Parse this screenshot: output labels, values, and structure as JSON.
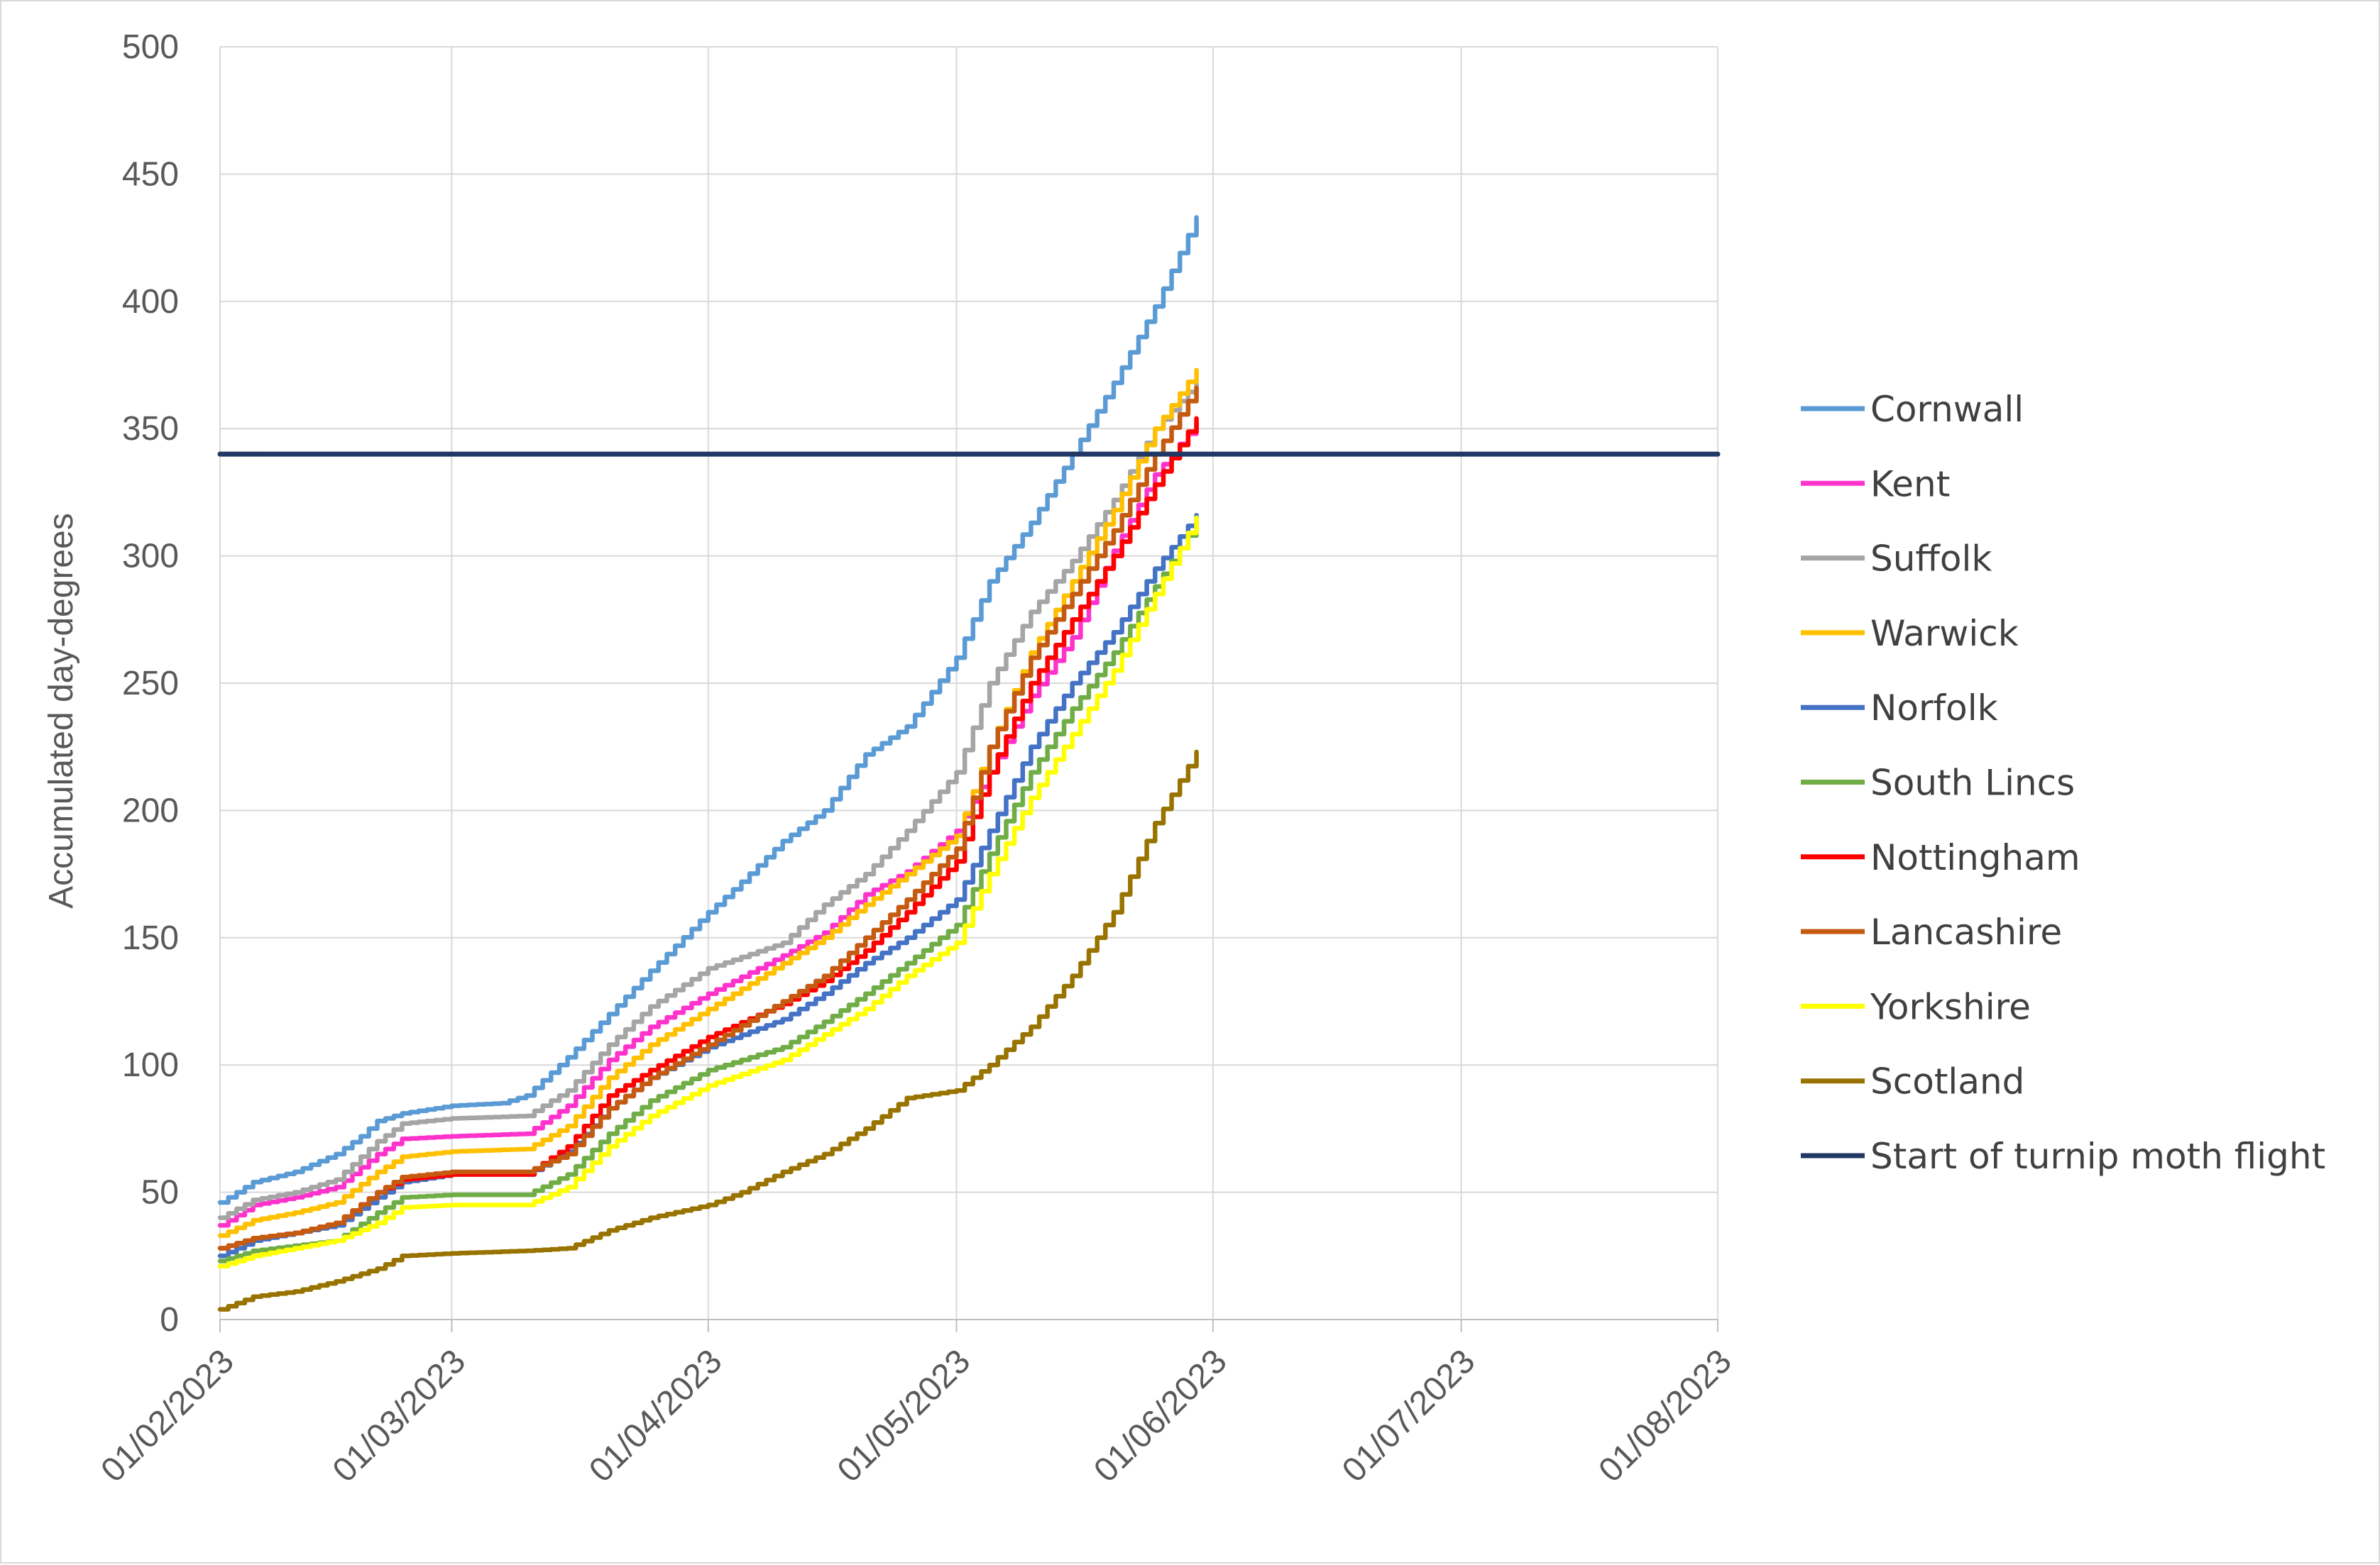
{
  "chart_data": {
    "type": "line",
    "title": "",
    "xlabel": "",
    "ylabel": "Accumulated day-degrees",
    "ylim": [
      0,
      500
    ],
    "yticks": [
      0,
      50,
      100,
      150,
      200,
      250,
      300,
      350,
      400,
      450,
      500
    ],
    "xlim": [
      "2023-02-01",
      "2023-08-01"
    ],
    "xticks": [
      "2023-02-01",
      "2023-03-01",
      "2023-04-01",
      "2023-05-01",
      "2023-06-01",
      "2023-07-01",
      "2023-08-01"
    ],
    "xtick_labels": [
      "01/02/2023",
      "01/03/2023",
      "01/04/2023",
      "01/05/2023",
      "01/06/2023",
      "01/07/2023",
      "01/08/2023"
    ],
    "grid": "vertical and horizontal",
    "legend_position": "right",
    "series": [
      {
        "name": "Cornwall",
        "color": "#5b9bd5",
        "x": [
          "2023-02-01",
          "2023-02-05",
          "2023-02-10",
          "2023-02-15",
          "2023-02-18",
          "2023-02-20",
          "2023-02-23",
          "2023-03-01",
          "2023-03-07",
          "2023-03-10",
          "2023-03-15",
          "2023-03-20",
          "2023-03-25",
          "2023-04-01",
          "2023-04-05",
          "2023-04-10",
          "2023-04-15",
          "2023-04-20",
          "2023-04-25",
          "2023-05-01",
          "2023-05-05",
          "2023-05-10",
          "2023-05-15",
          "2023-05-20",
          "2023-05-25",
          "2023-05-30"
        ],
        "y": [
          46,
          54,
          58,
          65,
          72,
          78,
          81,
          84,
          85,
          88,
          103,
          120,
          137,
          160,
          172,
          188,
          200,
          222,
          233,
          260,
          290,
          313,
          340,
          368,
          398,
          433
        ]
      },
      {
        "name": "Kent",
        "color": "#ff33cc",
        "x": [
          "2023-02-01",
          "2023-02-05",
          "2023-02-10",
          "2023-02-15",
          "2023-02-20",
          "2023-02-23",
          "2023-03-01",
          "2023-03-10",
          "2023-03-15",
          "2023-03-20",
          "2023-03-25",
          "2023-04-01",
          "2023-04-10",
          "2023-04-15",
          "2023-04-20",
          "2023-04-25",
          "2023-05-01",
          "2023-05-05",
          "2023-05-10",
          "2023-05-15",
          "2023-05-20",
          "2023-05-25",
          "2023-05-30"
        ],
        "y": [
          37,
          45,
          48,
          52,
          65,
          71,
          72,
          73,
          84,
          102,
          115,
          128,
          143,
          152,
          167,
          176,
          192,
          215,
          245,
          268,
          302,
          332,
          352
        ]
      },
      {
        "name": "Suffolk",
        "color": "#a5a5a5",
        "x": [
          "2023-02-01",
          "2023-02-05",
          "2023-02-10",
          "2023-02-15",
          "2023-02-20",
          "2023-02-23",
          "2023-03-01",
          "2023-03-10",
          "2023-03-15",
          "2023-03-20",
          "2023-03-25",
          "2023-04-01",
          "2023-04-10",
          "2023-04-15",
          "2023-04-20",
          "2023-04-25",
          "2023-05-01",
          "2023-05-05",
          "2023-05-10",
          "2023-05-15",
          "2023-05-20",
          "2023-05-25",
          "2023-05-30"
        ],
        "y": [
          40,
          47,
          50,
          55,
          70,
          77,
          79,
          80,
          90,
          108,
          123,
          138,
          148,
          163,
          175,
          192,
          215,
          250,
          278,
          298,
          322,
          350,
          368
        ]
      },
      {
        "name": "Warwick",
        "color": "#ffc000",
        "x": [
          "2023-02-01",
          "2023-02-05",
          "2023-02-10",
          "2023-02-15",
          "2023-02-20",
          "2023-02-23",
          "2023-03-01",
          "2023-03-10",
          "2023-03-15",
          "2023-03-20",
          "2023-03-25",
          "2023-04-01",
          "2023-04-10",
          "2023-04-15",
          "2023-04-20",
          "2023-04-25",
          "2023-05-01",
          "2023-05-05",
          "2023-05-10",
          "2023-05-15",
          "2023-05-20",
          "2023-05-25",
          "2023-05-30"
        ],
        "y": [
          33,
          39,
          42,
          46,
          58,
          64,
          66,
          67,
          76,
          95,
          108,
          122,
          140,
          150,
          163,
          175,
          190,
          225,
          262,
          290,
          318,
          350,
          373
        ]
      },
      {
        "name": "Norfolk",
        "color": "#4472c4",
        "x": [
          "2023-02-01",
          "2023-02-05",
          "2023-02-10",
          "2023-02-15",
          "2023-02-20",
          "2023-02-23",
          "2023-03-01",
          "2023-03-10",
          "2023-03-15",
          "2023-03-20",
          "2023-03-25",
          "2023-04-01",
          "2023-04-10",
          "2023-04-15",
          "2023-04-20",
          "2023-04-25",
          "2023-05-01",
          "2023-05-05",
          "2023-05-10",
          "2023-05-15",
          "2023-05-20",
          "2023-05-25",
          "2023-05-30"
        ],
        "y": [
          25,
          31,
          34,
          37,
          48,
          54,
          57,
          57,
          66,
          83,
          95,
          107,
          118,
          128,
          140,
          150,
          165,
          192,
          225,
          250,
          270,
          295,
          316
        ]
      },
      {
        "name": "South Lincs",
        "color": "#70ad47",
        "x": [
          "2023-02-01",
          "2023-02-05",
          "2023-02-10",
          "2023-02-15",
          "2023-02-20",
          "2023-02-23",
          "2023-03-01",
          "2023-03-10",
          "2023-03-15",
          "2023-03-20",
          "2023-03-25",
          "2023-04-01",
          "2023-04-10",
          "2023-04-15",
          "2023-04-20",
          "2023-04-25",
          "2023-05-01",
          "2023-05-05",
          "2023-05-10",
          "2023-05-15",
          "2023-05-20",
          "2023-05-25",
          "2023-05-30"
        ],
        "y": [
          23,
          27,
          29,
          31,
          42,
          48,
          49,
          49,
          57,
          73,
          86,
          98,
          107,
          117,
          128,
          140,
          155,
          183,
          215,
          240,
          262,
          288,
          313
        ]
      },
      {
        "name": "Nottingham",
        "color": "#ff0000",
        "x": [
          "2023-02-01",
          "2023-02-05",
          "2023-02-10",
          "2023-02-15",
          "2023-02-20",
          "2023-02-23",
          "2023-03-01",
          "2023-03-10",
          "2023-03-15",
          "2023-03-20",
          "2023-03-25",
          "2023-04-01",
          "2023-04-10",
          "2023-04-15",
          "2023-04-20",
          "2023-04-25",
          "2023-05-01",
          "2023-05-05",
          "2023-05-10",
          "2023-05-15",
          "2023-05-20",
          "2023-05-25",
          "2023-05-30"
        ],
        "y": [
          28,
          32,
          34,
          38,
          50,
          55,
          57,
          57,
          68,
          88,
          98,
          111,
          124,
          133,
          145,
          160,
          180,
          215,
          250,
          275,
          300,
          328,
          354
        ]
      },
      {
        "name": "Lancashire",
        "color": "#c55a11",
        "x": [
          "2023-02-01",
          "2023-02-05",
          "2023-02-10",
          "2023-02-15",
          "2023-02-20",
          "2023-02-23",
          "2023-03-01",
          "2023-03-10",
          "2023-03-15",
          "2023-03-20",
          "2023-03-25",
          "2023-04-01",
          "2023-04-10",
          "2023-04-15",
          "2023-04-20",
          "2023-04-25",
          "2023-05-01",
          "2023-05-05",
          "2023-05-10",
          "2023-05-15",
          "2023-05-20",
          "2023-05-25",
          "2023-05-30"
        ],
        "y": [
          28,
          32,
          34,
          38,
          50,
          56,
          58,
          58,
          65,
          83,
          95,
          108,
          125,
          135,
          150,
          165,
          185,
          225,
          260,
          285,
          310,
          340,
          366
        ]
      },
      {
        "name": "Yorkshire",
        "color": "#ffff00",
        "x": [
          "2023-02-01",
          "2023-02-05",
          "2023-02-10",
          "2023-02-15",
          "2023-02-20",
          "2023-02-23",
          "2023-03-01",
          "2023-03-10",
          "2023-03-15",
          "2023-03-20",
          "2023-03-25",
          "2023-04-01",
          "2023-04-10",
          "2023-04-15",
          "2023-04-20",
          "2023-04-25",
          "2023-05-01",
          "2023-05-05",
          "2023-05-10",
          "2023-05-15",
          "2023-05-20",
          "2023-05-25",
          "2023-05-30"
        ],
        "y": [
          21,
          25,
          28,
          31,
          38,
          44,
          45,
          45,
          52,
          68,
          80,
          92,
          102,
          112,
          122,
          135,
          148,
          175,
          205,
          230,
          255,
          285,
          315
        ]
      },
      {
        "name": "Scotland",
        "color": "#997300",
        "x": [
          "2023-02-01",
          "2023-02-05",
          "2023-02-10",
          "2023-02-15",
          "2023-02-20",
          "2023-02-23",
          "2023-03-01",
          "2023-03-10",
          "2023-03-15",
          "2023-03-20",
          "2023-03-25",
          "2023-04-01",
          "2023-04-05",
          "2023-04-10",
          "2023-04-15",
          "2023-04-20",
          "2023-04-25",
          "2023-05-01",
          "2023-05-05",
          "2023-05-10",
          "2023-05-15",
          "2023-05-20",
          "2023-05-25",
          "2023-05-30"
        ],
        "y": [
          4,
          9,
          11,
          15,
          20,
          25,
          26,
          27,
          28,
          35,
          40,
          45,
          50,
          58,
          65,
          75,
          87,
          90,
          100,
          115,
          135,
          160,
          195,
          223
        ]
      },
      {
        "name": "Start of turnip moth flight",
        "color": "#203864",
        "x": [
          "2023-02-01",
          "2023-08-01"
        ],
        "y": [
          340,
          340
        ]
      }
    ]
  }
}
